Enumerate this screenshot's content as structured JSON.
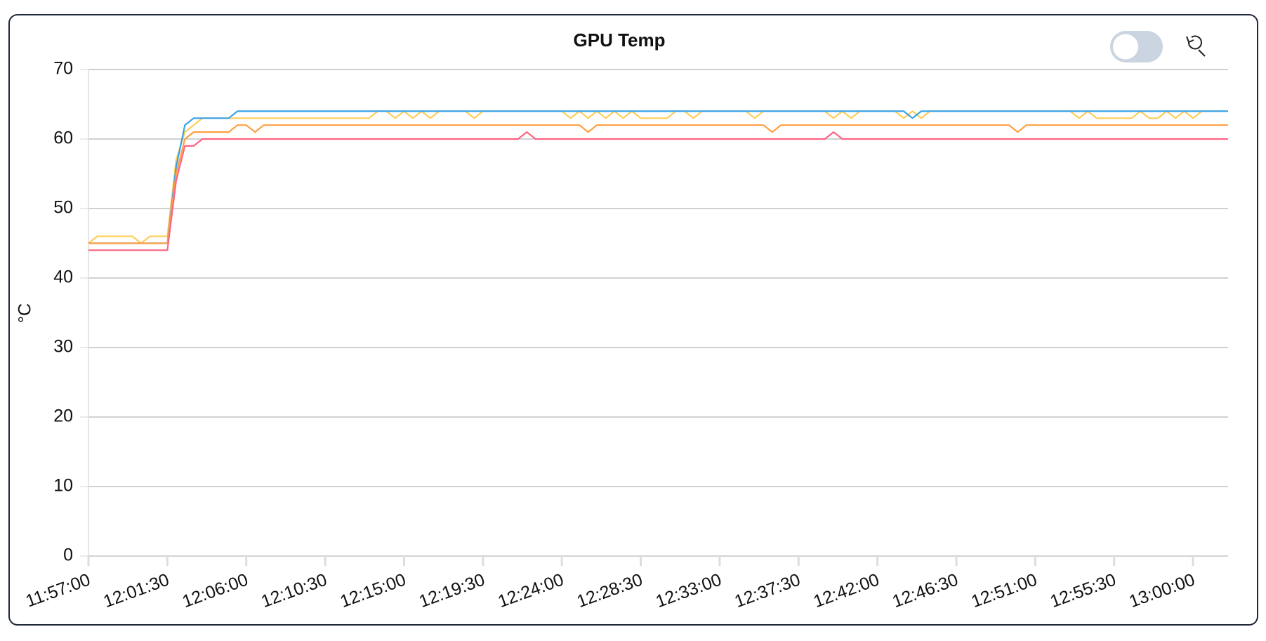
{
  "chart_data": {
    "type": "line",
    "title": "GPU Temp",
    "y_label": "°C",
    "categories": [
      "11:57:00",
      null,
      null,
      null,
      null,
      null,
      null,
      null,
      null,
      "12:01:30",
      null,
      null,
      null,
      null,
      null,
      null,
      null,
      null,
      "12:06:00",
      null,
      null,
      null,
      null,
      null,
      null,
      null,
      null,
      "12:10:30",
      null,
      null,
      null,
      null,
      null,
      null,
      null,
      null,
      "12:15:00",
      null,
      null,
      null,
      null,
      null,
      null,
      null,
      null,
      "12:19:30",
      null,
      null,
      null,
      null,
      null,
      null,
      null,
      null,
      "12:24:00",
      null,
      null,
      null,
      null,
      null,
      null,
      null,
      null,
      "12:28:30",
      null,
      null,
      null,
      null,
      null,
      null,
      null,
      null,
      "12:33:00",
      null,
      null,
      null,
      null,
      null,
      null,
      null,
      null,
      "12:37:30",
      null,
      null,
      null,
      null,
      null,
      null,
      null,
      null,
      "12:42:00",
      null,
      null,
      null,
      null,
      null,
      null,
      null,
      null,
      "12:46:30",
      null,
      null,
      null,
      null,
      null,
      null,
      null,
      null,
      "12:51:00",
      null,
      null,
      null,
      null,
      null,
      null,
      null,
      null,
      "12:55:30",
      null,
      null,
      null,
      null,
      null,
      null,
      null,
      null,
      "13:00:00",
      null,
      null,
      null,
      null
    ],
    "series": [
      {
        "color": "#ffcd56",
        "values": [
          45,
          46,
          46,
          46,
          46,
          46,
          45,
          46,
          46,
          46,
          57,
          61,
          62,
          63,
          63,
          63,
          63,
          63,
          63,
          63,
          63,
          63,
          63,
          63,
          63,
          63,
          63,
          63,
          63,
          63,
          63,
          63,
          63,
          64,
          64,
          63,
          64,
          63,
          64,
          63,
          64,
          64,
          64,
          64,
          63,
          64,
          64,
          64,
          64,
          64,
          64,
          64,
          64,
          64,
          64,
          63,
          64,
          63,
          64,
          63,
          64,
          63,
          64,
          63,
          63,
          63,
          63,
          64,
          64,
          63,
          64,
          64,
          64,
          64,
          64,
          64,
          63,
          64,
          64,
          64,
          64,
          64,
          64,
          64,
          64,
          63,
          64,
          63,
          64,
          64,
          64,
          64,
          64,
          63,
          64,
          63,
          64,
          64,
          64,
          64,
          64,
          64,
          64,
          64,
          64,
          64,
          64,
          64,
          64,
          64,
          64,
          64,
          64,
          63,
          64,
          63,
          63,
          63,
          63,
          63,
          64,
          63,
          63,
          64,
          63,
          64,
          63,
          64,
          64,
          64,
          64
        ]
      },
      {
        "color": "#36a2eb",
        "values": [
          45,
          45,
          45,
          45,
          45,
          45,
          45,
          45,
          45,
          45,
          56,
          62,
          63,
          63,
          63,
          63,
          63,
          64,
          64,
          64,
          64,
          64,
          64,
          64,
          64,
          64,
          64,
          64,
          64,
          64,
          64,
          64,
          64,
          64,
          64,
          64,
          64,
          64,
          64,
          64,
          64,
          64,
          64,
          64,
          64,
          64,
          64,
          64,
          64,
          64,
          64,
          64,
          64,
          64,
          64,
          64,
          64,
          64,
          64,
          64,
          64,
          64,
          64,
          64,
          64,
          64,
          64,
          64,
          64,
          64,
          64,
          64,
          64,
          64,
          64,
          64,
          64,
          64,
          64,
          64,
          64,
          64,
          64,
          64,
          64,
          64,
          64,
          64,
          64,
          64,
          64,
          64,
          64,
          64,
          63,
          64,
          64,
          64,
          64,
          64,
          64,
          64,
          64,
          64,
          64,
          64,
          64,
          64,
          64,
          64,
          64,
          64,
          64,
          64,
          64,
          64,
          64,
          64,
          64,
          64,
          64,
          64,
          64,
          64,
          64,
          64,
          64,
          64,
          64,
          64,
          64
        ]
      },
      {
        "color": "#ff9f40",
        "values": [
          45,
          45,
          45,
          45,
          45,
          45,
          45,
          45,
          45,
          45,
          55,
          60,
          61,
          61,
          61,
          61,
          61,
          62,
          62,
          61,
          62,
          62,
          62,
          62,
          62,
          62,
          62,
          62,
          62,
          62,
          62,
          62,
          62,
          62,
          62,
          62,
          62,
          62,
          62,
          62,
          62,
          62,
          62,
          62,
          62,
          62,
          62,
          62,
          62,
          62,
          62,
          62,
          62,
          62,
          62,
          62,
          62,
          61,
          62,
          62,
          62,
          62,
          62,
          62,
          62,
          62,
          62,
          62,
          62,
          62,
          62,
          62,
          62,
          62,
          62,
          62,
          62,
          62,
          61,
          62,
          62,
          62,
          62,
          62,
          62,
          62,
          62,
          62,
          62,
          62,
          62,
          62,
          62,
          62,
          62,
          62,
          62,
          62,
          62,
          62,
          62,
          62,
          62,
          62,
          62,
          62,
          61,
          62,
          62,
          62,
          62,
          62,
          62,
          62,
          62,
          62,
          62,
          62,
          62,
          62,
          62,
          62,
          62,
          62,
          62,
          62,
          62,
          62,
          62,
          62,
          62
        ]
      },
      {
        "color": "#ff6384",
        "values": [
          44,
          44,
          44,
          44,
          44,
          44,
          44,
          44,
          44,
          44,
          54,
          59,
          59,
          60,
          60,
          60,
          60,
          60,
          60,
          60,
          60,
          60,
          60,
          60,
          60,
          60,
          60,
          60,
          60,
          60,
          60,
          60,
          60,
          60,
          60,
          60,
          60,
          60,
          60,
          60,
          60,
          60,
          60,
          60,
          60,
          60,
          60,
          60,
          60,
          60,
          61,
          60,
          60,
          60,
          60,
          60,
          60,
          60,
          60,
          60,
          60,
          60,
          60,
          60,
          60,
          60,
          60,
          60,
          60,
          60,
          60,
          60,
          60,
          60,
          60,
          60,
          60,
          60,
          60,
          60,
          60,
          60,
          60,
          60,
          60,
          61,
          60,
          60,
          60,
          60,
          60,
          60,
          60,
          60,
          60,
          60,
          60,
          60,
          60,
          60,
          60,
          60,
          60,
          60,
          60,
          60,
          60,
          60,
          60,
          60,
          60,
          60,
          60,
          60,
          60,
          60,
          60,
          60,
          60,
          60,
          60,
          60,
          60,
          60,
          60,
          60,
          60,
          60,
          60,
          60,
          60
        ]
      }
    ],
    "ylim": [
      0,
      70
    ],
    "yticks": [
      0,
      10,
      20,
      30,
      40,
      50,
      60,
      70
    ],
    "grid": true
  }
}
